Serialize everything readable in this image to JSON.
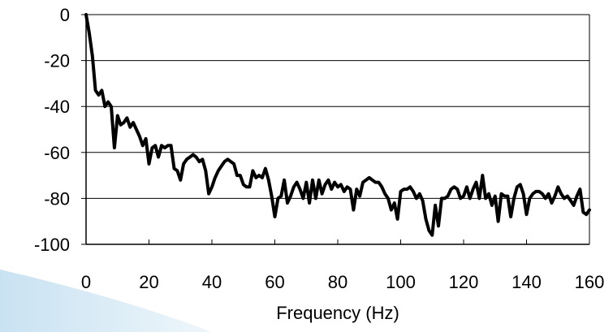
{
  "chart_data": {
    "type": "line",
    "title": "",
    "xlabel": "Frequency (Hz)",
    "ylabel": "",
    "xlim": [
      0,
      160
    ],
    "ylim": [
      -100,
      0
    ],
    "grid": "horizontal",
    "legend": "none",
    "x_ticks": [
      "0",
      "20",
      "40",
      "60",
      "80",
      "100",
      "120",
      "140",
      "160"
    ],
    "y_ticks": [
      "0",
      "-20",
      "-40",
      "-60",
      "-80",
      "-100"
    ],
    "series": [
      {
        "color": "#000000",
        "x": [
          0,
          1,
          2,
          3,
          4,
          5,
          6,
          7,
          8,
          9,
          10,
          11,
          12,
          13,
          14,
          15,
          16,
          17,
          18,
          19,
          20,
          21,
          22,
          23,
          24,
          25,
          26,
          27,
          28,
          29,
          30,
          31,
          32,
          33,
          34,
          35,
          36,
          37,
          38,
          39,
          40,
          41,
          42,
          43,
          44,
          45,
          46,
          47,
          48,
          49,
          50,
          51,
          52,
          53,
          54,
          55,
          56,
          57,
          58,
          59,
          60,
          61,
          62,
          63,
          64,
          65,
          66,
          67,
          68,
          69,
          70,
          71,
          72,
          73,
          74,
          75,
          76,
          77,
          78,
          79,
          80,
          81,
          82,
          83,
          84,
          85,
          86,
          87,
          88,
          89,
          90,
          91,
          92,
          93,
          94,
          95,
          96,
          97,
          98,
          99,
          100,
          101,
          102,
          103,
          104,
          105,
          106,
          107,
          108,
          109,
          110,
          111,
          112,
          113,
          114,
          115,
          116,
          117,
          118,
          119,
          120,
          121,
          122,
          123,
          124,
          125,
          126,
          127,
          128,
          129,
          130,
          131,
          132,
          133,
          134,
          135,
          136,
          137,
          138,
          139,
          140,
          141,
          142,
          143,
          144,
          145,
          146,
          147,
          148,
          149,
          150,
          151,
          152,
          153,
          154,
          155,
          156,
          157,
          158,
          159,
          160
        ],
        "y": [
          0,
          -8,
          -18,
          -33,
          -35,
          -33,
          -40,
          -38,
          -40,
          -58,
          -44,
          -48,
          -47,
          -45,
          -49,
          -47,
          -50,
          -53,
          -57,
          -54,
          -65,
          -58,
          -57,
          -62,
          -57,
          -58,
          -57,
          -57,
          -67,
          -68,
          -72,
          -65,
          -63,
          -62,
          -61,
          -62,
          -64,
          -63,
          -68,
          -78,
          -75,
          -71,
          -68,
          -66,
          -64,
          -63,
          -64,
          -65,
          -70,
          -70,
          -74,
          -75,
          -75,
          -68,
          -71,
          -70,
          -71,
          -67,
          -72,
          -79,
          -88,
          -80,
          -79,
          -72,
          -82,
          -79,
          -75,
          -73,
          -76,
          -80,
          -73,
          -82,
          -72,
          -80,
          -72,
          -78,
          -74,
          -72,
          -76,
          -73,
          -75,
          -74,
          -77,
          -75,
          -76,
          -85,
          -76,
          -79,
          -73,
          -72,
          -71,
          -72,
          -73,
          -73,
          -75,
          -78,
          -80,
          -85,
          -82,
          -89,
          -77,
          -76,
          -76,
          -75,
          -77,
          -80,
          -78,
          -81,
          -89,
          -94,
          -96,
          -83,
          -92,
          -80,
          -80,
          -79,
          -76,
          -75,
          -76,
          -80,
          -79,
          -75,
          -80,
          -76,
          -73,
          -80,
          -70,
          -80,
          -78,
          -83,
          -79,
          -90,
          -78,
          -79,
          -79,
          -88,
          -80,
          -75,
          -74,
          -78,
          -87,
          -80,
          -78,
          -77,
          -77,
          -78,
          -80,
          -78,
          -82,
          -79,
          -75,
          -78,
          -80,
          -79,
          -81,
          -83,
          -79,
          -76,
          -86,
          -87,
          -85
        ]
      }
    ]
  }
}
